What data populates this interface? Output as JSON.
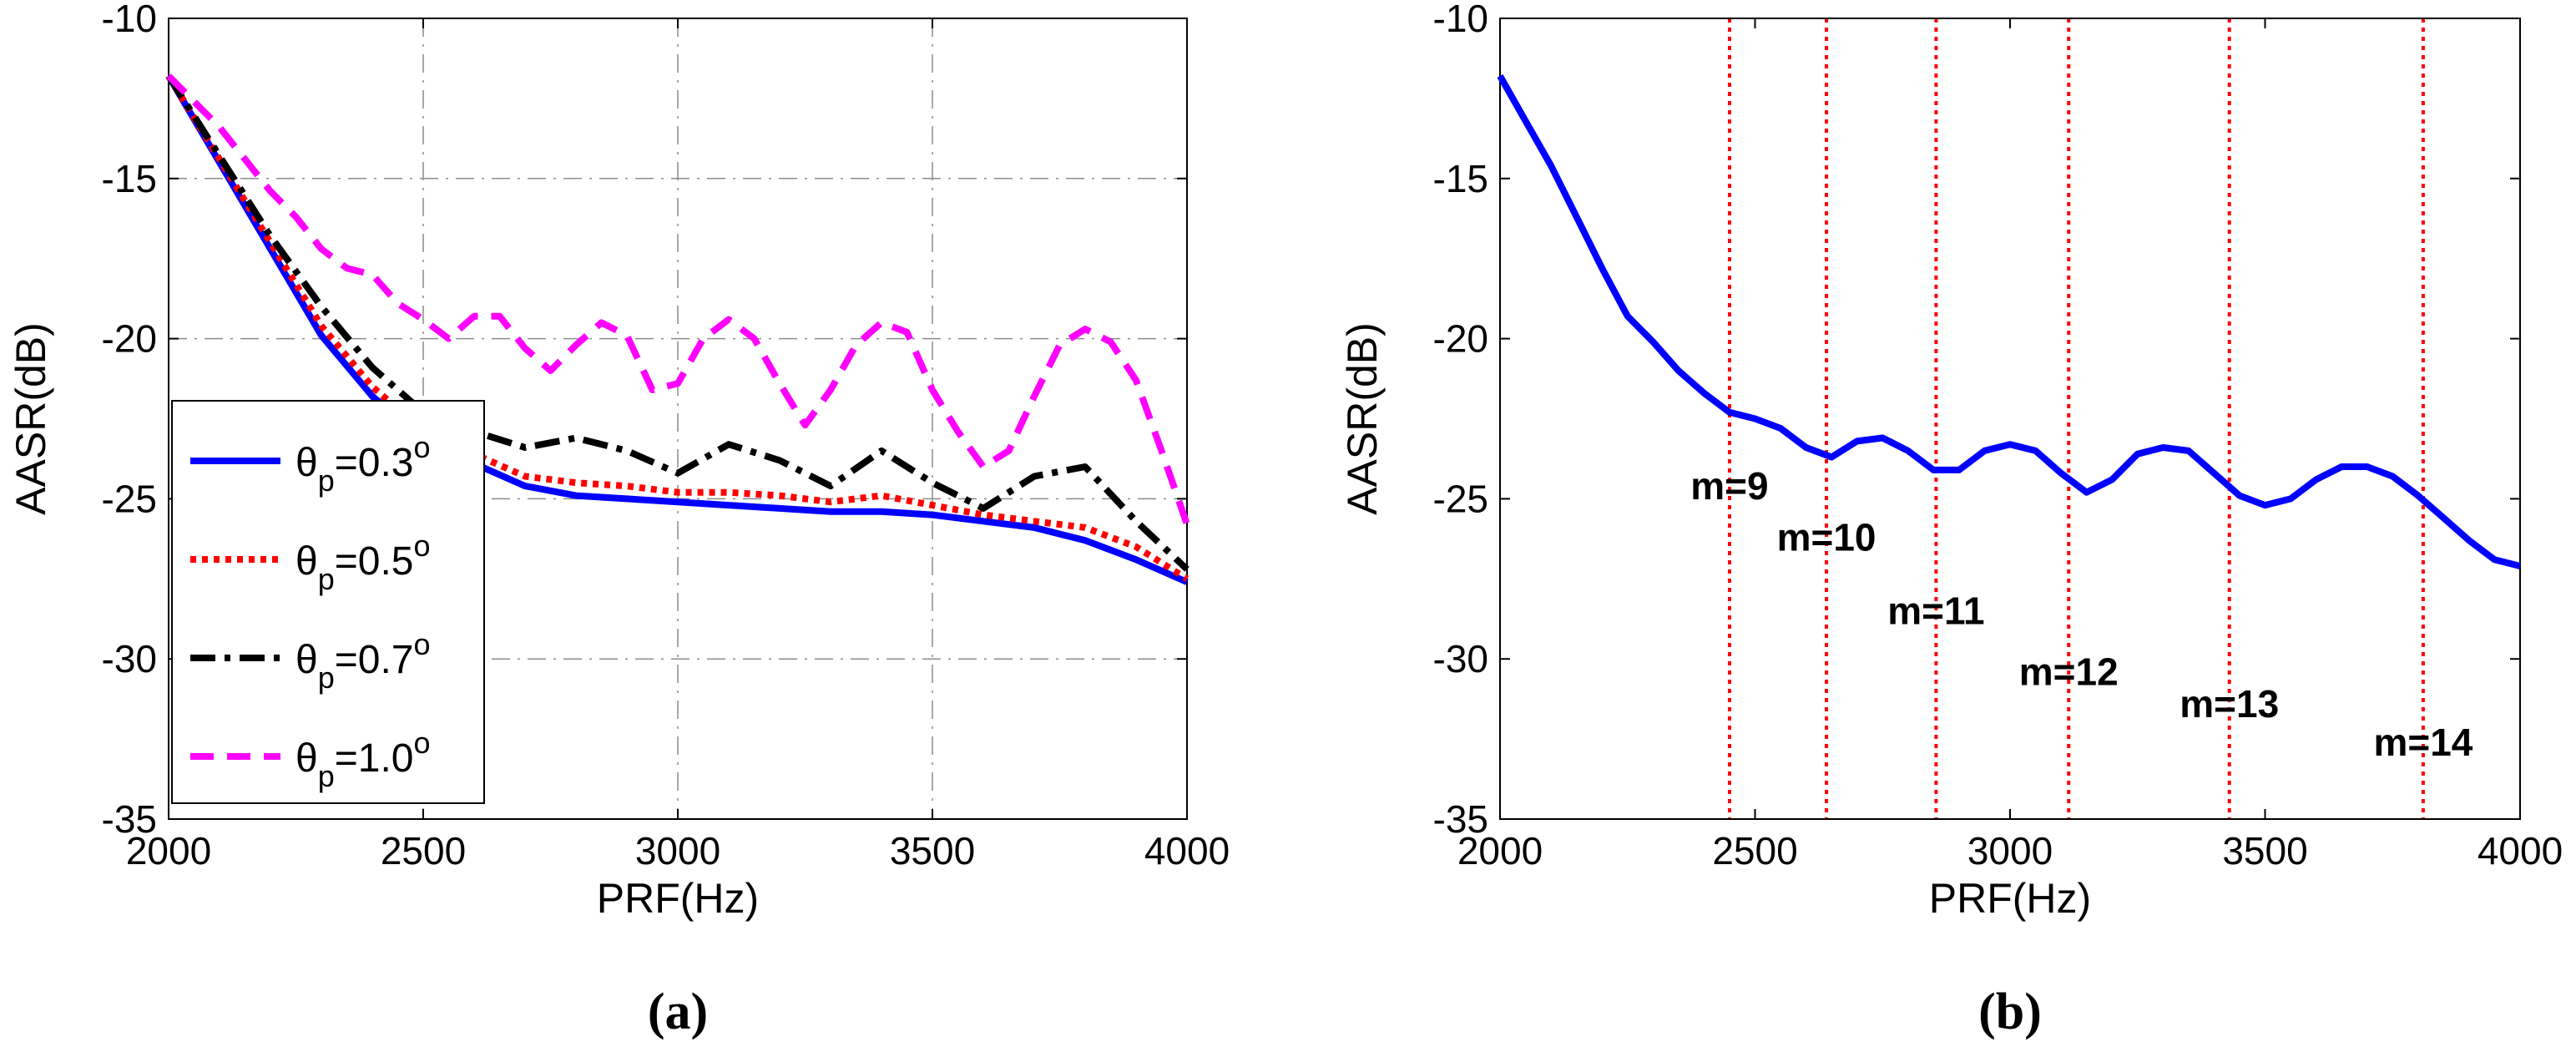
{
  "chart_data": [
    {
      "type": "line",
      "panel": "(a)",
      "xlabel": "PRF(Hz)",
      "ylabel": "AASR(dB)",
      "xlim": [
        2000,
        4000
      ],
      "ylim": [
        -35,
        -10
      ],
      "xticks": [
        2000,
        2500,
        3000,
        3500,
        4000
      ],
      "yticks": [
        -35,
        -30,
        -25,
        -20,
        -15,
        -10
      ],
      "grid": true,
      "legend_position": "lower-left",
      "series": [
        {
          "name": "θp=0.3°",
          "legend": {
            "pre": "θ",
            "sub": "p",
            "mid": "=0.3",
            "sup": "o"
          },
          "color": "#0000ff",
          "style": "solid",
          "x": [
            2000,
            2100,
            2200,
            2300,
            2400,
            2500,
            2600,
            2700,
            2800,
            2900,
            3000,
            3100,
            3200,
            3300,
            3400,
            3500,
            3600,
            3700,
            3800,
            3900,
            4000
          ],
          "y": [
            -11.8,
            -14.5,
            -17.2,
            -19.9,
            -21.8,
            -23.1,
            -23.9,
            -24.6,
            -24.9,
            -25.0,
            -25.1,
            -25.2,
            -25.3,
            -25.4,
            -25.4,
            -25.5,
            -25.7,
            -25.9,
            -26.3,
            -26.9,
            -27.6
          ]
        },
        {
          "name": "θp=0.5°",
          "legend": {
            "pre": "θ",
            "sub": "p",
            "mid": "=0.5",
            "sup": "o"
          },
          "color": "#ff0000",
          "style": "dotted",
          "x": [
            2000,
            2100,
            2200,
            2300,
            2400,
            2500,
            2600,
            2700,
            2800,
            2900,
            3000,
            3100,
            3200,
            3300,
            3400,
            3500,
            3600,
            3700,
            3800,
            3900,
            4000
          ],
          "y": [
            -11.8,
            -14.4,
            -17.0,
            -19.6,
            -21.5,
            -22.9,
            -23.6,
            -24.3,
            -24.5,
            -24.6,
            -24.8,
            -24.8,
            -24.9,
            -25.1,
            -24.9,
            -25.2,
            -25.5,
            -25.7,
            -25.9,
            -26.5,
            -27.5
          ]
        },
        {
          "name": "θp=0.7°",
          "legend": {
            "pre": "θ",
            "sub": "p",
            "mid": "=0.7",
            "sup": "o"
          },
          "color": "#000000",
          "style": "dashdot",
          "x": [
            2000,
            2100,
            2200,
            2300,
            2400,
            2500,
            2600,
            2700,
            2800,
            2900,
            3000,
            3100,
            3200,
            3300,
            3400,
            3500,
            3600,
            3700,
            3800,
            3900,
            4000
          ],
          "y": [
            -11.8,
            -14.3,
            -16.8,
            -19.0,
            -20.9,
            -22.3,
            -22.9,
            -23.4,
            -23.1,
            -23.5,
            -24.2,
            -23.3,
            -23.8,
            -24.6,
            -23.5,
            -24.5,
            -25.3,
            -24.3,
            -24.0,
            -25.7,
            -27.2
          ]
        },
        {
          "name": "θp=1.0°",
          "legend": {
            "pre": "θ",
            "sub": "p",
            "mid": "=1.0",
            "sup": "o"
          },
          "color": "#ff00ff",
          "style": "dashed",
          "x": [
            2000,
            2050,
            2100,
            2150,
            2200,
            2250,
            2300,
            2350,
            2400,
            2450,
            2500,
            2550,
            2600,
            2650,
            2700,
            2750,
            2800,
            2850,
            2900,
            2950,
            3000,
            3050,
            3100,
            3150,
            3200,
            3250,
            3300,
            3350,
            3400,
            3450,
            3500,
            3550,
            3600,
            3650,
            3700,
            3750,
            3800,
            3850,
            3900,
            3950,
            4000
          ],
          "y": [
            -11.8,
            -12.6,
            -13.4,
            -14.4,
            -15.4,
            -16.2,
            -17.2,
            -17.8,
            -18.0,
            -18.9,
            -19.4,
            -20.0,
            -19.3,
            -19.3,
            -20.3,
            -21.0,
            -20.2,
            -19.5,
            -19.9,
            -21.6,
            -21.4,
            -20.0,
            -19.4,
            -20.0,
            -21.4,
            -22.7,
            -21.6,
            -20.2,
            -19.5,
            -19.8,
            -21.6,
            -22.9,
            -24.0,
            -23.5,
            -21.8,
            -20.2,
            -19.7,
            -20.1,
            -21.3,
            -23.5,
            -25.8
          ]
        }
      ]
    },
    {
      "type": "line",
      "panel": "(b)",
      "xlabel": "PRF(Hz)",
      "ylabel": "AASR(dB)",
      "xlim": [
        2000,
        4000
      ],
      "ylim": [
        -35,
        -10
      ],
      "xticks": [
        2000,
        2500,
        3000,
        3500,
        4000
      ],
      "yticks": [
        -35,
        -30,
        -25,
        -20,
        -15,
        -10
      ],
      "grid": false,
      "series": [
        {
          "name": "AASR",
          "color": "#0000ff",
          "style": "solid",
          "x": [
            2000,
            2050,
            2100,
            2150,
            2200,
            2250,
            2300,
            2350,
            2400,
            2450,
            2500,
            2550,
            2600,
            2650,
            2700,
            2750,
            2800,
            2850,
            2900,
            2950,
            3000,
            3050,
            3100,
            3150,
            3200,
            3250,
            3300,
            3350,
            3400,
            3450,
            3500,
            3550,
            3600,
            3650,
            3700,
            3750,
            3800,
            3850,
            3900,
            3950,
            4000
          ],
          "y": [
            -11.8,
            -13.2,
            -14.6,
            -16.2,
            -17.8,
            -19.3,
            -20.1,
            -21.0,
            -21.7,
            -22.3,
            -22.5,
            -22.8,
            -23.4,
            -23.7,
            -23.2,
            -23.1,
            -23.5,
            -24.1,
            -24.1,
            -23.5,
            -23.3,
            -23.5,
            -24.2,
            -24.8,
            -24.4,
            -23.6,
            -23.4,
            -23.5,
            -24.2,
            -24.9,
            -25.2,
            -25.0,
            -24.4,
            -24.0,
            -24.0,
            -24.3,
            -24.9,
            -25.6,
            -26.3,
            -26.9,
            -27.1
          ]
        }
      ],
      "vlines": [
        2450,
        2640,
        2855,
        3115,
        3430,
        3810
      ],
      "vline_color": "#ff0000",
      "annotations": [
        {
          "text": "m=9",
          "x": 2450,
          "y": -24.6
        },
        {
          "text": "m=10",
          "x": 2640,
          "y": -26.2
        },
        {
          "text": "m=11",
          "x": 2855,
          "y": -28.5
        },
        {
          "text": "m=12",
          "x": 3115,
          "y": -30.4
        },
        {
          "text": "m=13",
          "x": 3430,
          "y": -31.4
        },
        {
          "text": "m=14",
          "x": 3810,
          "y": -32.6
        }
      ]
    }
  ],
  "captions": {
    "a": "(a)",
    "b": "(b)"
  }
}
